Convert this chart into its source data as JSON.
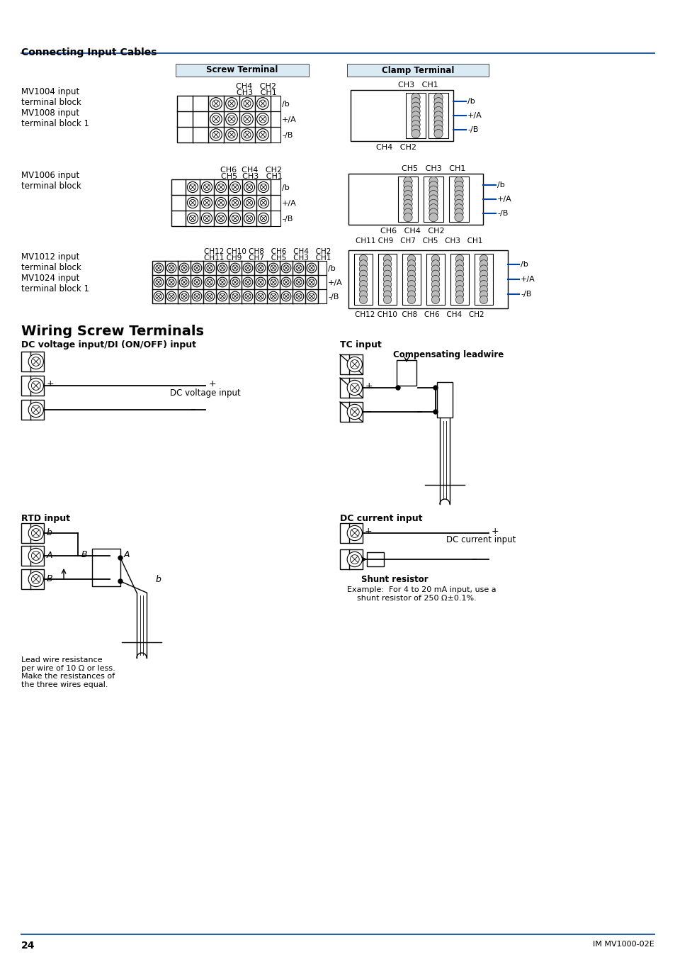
{
  "bg_color": "#ffffff",
  "header_line_color": "#2e5fa3",
  "blue_header_bg": "#daeaf5",
  "page_title": "Connecting Input Cables",
  "section_title": "Wiring Screw Terminals",
  "screw_terminal_label": "Screw Terminal",
  "clamp_terminal_label": "Clamp Terminal",
  "row1_label": "MV1004 input\nterminal block\nMV1008 input\nterminal block 1",
  "row1_screw_ch_top": "CH4   CH2",
  "row1_screw_ch_bot": "CH3   CH1",
  "row1_clamp_ch_top": "CH3   CH1",
  "row1_clamp_ch_bot": "CH4   CH2",
  "row2_label": "MV1006 input\nterminal block",
  "row2_screw_ch_top": "CH6  CH4   CH2",
  "row2_screw_ch_bot": "CH5  CH3   CH1",
  "row2_clamp_ch_top": "CH5   CH3   CH1",
  "row2_clamp_ch_bot": "CH6   CH4   CH2",
  "row3_label": "MV1012 input\nterminal block\nMV1024 input\nterminal block 1",
  "row3_screw_ch_top": "CH12 CH10 CH8   CH6   CH4   CH2",
  "row3_screw_ch_bot": "CH11 CH9   CH7   CH5   CH3   CH1",
  "row3_clamp_ch_top": "CH11 CH9   CH7   CH5   CH3   CH1",
  "row3_clamp_ch_bot": "CH12 CH10  CH8   CH6   CH4   CH2",
  "dc_vol_title": "DC voltage input/DI (ON/OFF) input",
  "tc_title": "TC input",
  "tc_comp_label": "Compensating leadwire",
  "dc_vol_label": "DC voltage input",
  "rtd_title": "RTD input",
  "rtd_note": "Lead wire resistance\nper wire of 10 Ω or less.\nMake the resistances of\nthe three wires equal.",
  "dci_title": "DC current input",
  "dci_label": "DC current input",
  "shunt_label": "Shunt resistor",
  "shunt_note": "Example:  For 4 to 20 mA input, use a\n    shunt resistor of 250 Ω±0.1%.",
  "page_num": "24",
  "doc_ref": "IM MV1000-02E",
  "wire_labels": [
    "/b",
    "+/A",
    "-/B"
  ]
}
